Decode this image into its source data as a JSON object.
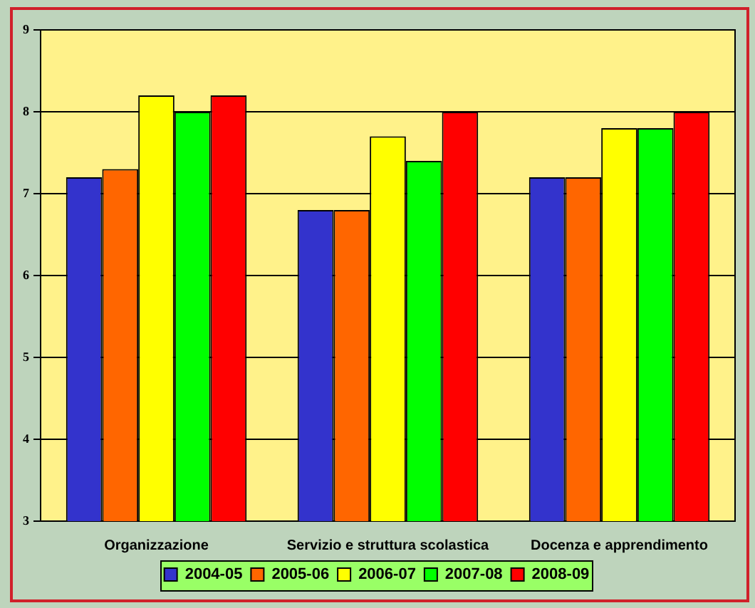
{
  "chart_data": {
    "type": "bar",
    "categories": [
      "Organizzazione",
      "Servizio e struttura scolastica",
      "Docenza e apprendimento"
    ],
    "series": [
      {
        "name": "2004-05",
        "color": "#3333cc",
        "values": [
          7.2,
          6.8,
          7.2
        ]
      },
      {
        "name": "2005-06",
        "color": "#ff6600",
        "values": [
          7.3,
          6.8,
          7.2
        ]
      },
      {
        "name": "2006-07",
        "color": "#ffff00",
        "values": [
          8.2,
          7.7,
          7.8
        ]
      },
      {
        "name": "2007-08",
        "color": "#00ff00",
        "values": [
          8.0,
          7.4,
          7.8
        ]
      },
      {
        "name": "2008-09",
        "color": "#ff0000",
        "values": [
          8.2,
          8.0,
          8.0
        ]
      }
    ],
    "ylim": [
      3,
      9
    ],
    "yticks": [
      3,
      4,
      5,
      6,
      7,
      8,
      9
    ],
    "grid": "y",
    "legend": "bottom"
  }
}
